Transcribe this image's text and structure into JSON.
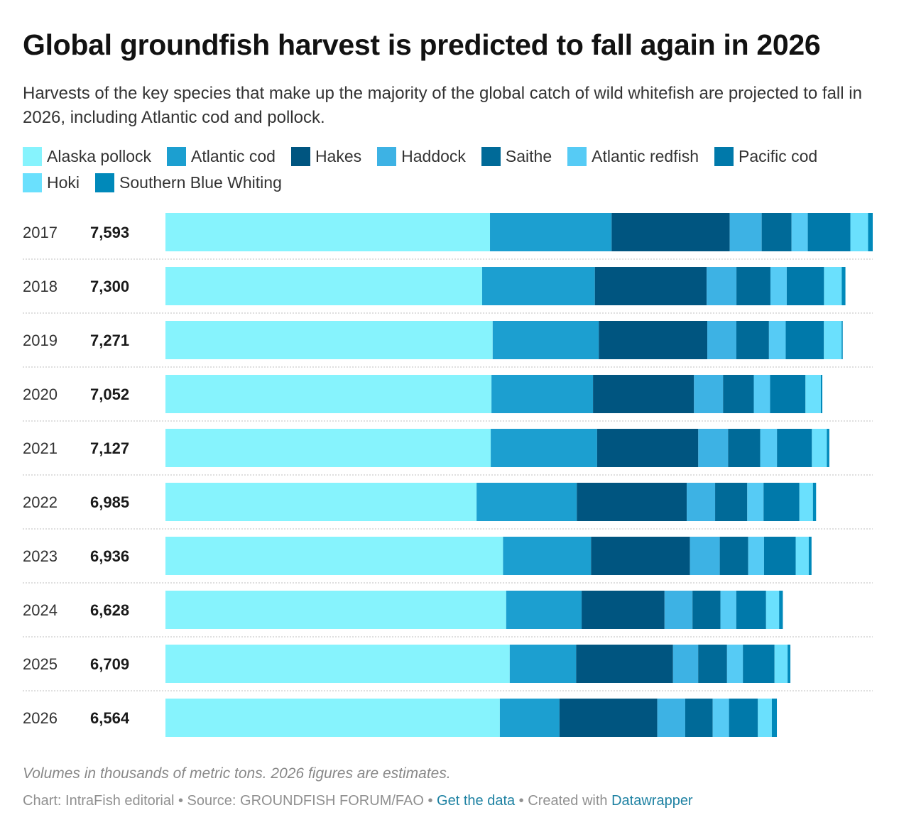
{
  "header": {
    "title": "Global groundfish harvest is predicted to fall again in 2026",
    "subtitle": "Harvests of the key species that make up the majority of the global catch of wild whitefish are projected to fall in 2026, including Atlantic cod and pollock."
  },
  "footer": {
    "note": "Volumes in thousands of metric tons. 2026 figures are estimates.",
    "credit": "Chart: IntraFish editorial",
    "sep1": " • ",
    "source": "Source: GROUNDFISH FORUM/FAO",
    "sep2": " • ",
    "get_data": "Get the data",
    "sep3": " • ",
    "created_with": "Created with ",
    "datawrapper": "Datawrapper"
  },
  "chart_data": {
    "type": "bar",
    "orientation": "horizontal",
    "stacked": true,
    "unit": "thousands of metric tons",
    "xlim": [
      0,
      7593
    ],
    "legend_position": "top",
    "categories": [
      "2017",
      "2018",
      "2019",
      "2020",
      "2021",
      "2022",
      "2023",
      "2024",
      "2025",
      "2026"
    ],
    "totals": [
      "7,593",
      "7,300",
      "7,271",
      "7,052",
      "7,127",
      "6,985",
      "6,936",
      "6,628",
      "6,709",
      "6,564"
    ],
    "series": [
      {
        "name": "Alaska pollock",
        "color": "#86f3fd",
        "values": [
          3484,
          3400,
          3513,
          3500,
          3492,
          3340,
          3624,
          3658,
          3696,
          3590
        ]
      },
      {
        "name": "Atlantic cod",
        "color": "#1c9fd0",
        "values": [
          1306,
          1210,
          1139,
          1090,
          1142,
          1076,
          945,
          810,
          713,
          640
        ]
      },
      {
        "name": "Hakes",
        "color": "#005580",
        "values": [
          1268,
          1200,
          1165,
          1084,
          1086,
          1180,
          1062,
          890,
          1040,
          1050
        ]
      },
      {
        "name": "Haddock",
        "color": "#3db2e4",
        "values": [
          343,
          320,
          312,
          312,
          320,
          305,
          320,
          300,
          270,
          300
        ]
      },
      {
        "name": "Saithe",
        "color": "#006a98",
        "values": [
          320,
          365,
          350,
          330,
          345,
          345,
          305,
          300,
          310,
          295
        ]
      },
      {
        "name": "Atlantic redfish",
        "color": "#56cbf5",
        "values": [
          175,
          175,
          180,
          175,
          180,
          175,
          170,
          170,
          170,
          175
        ]
      },
      {
        "name": "Pacific cod",
        "color": "#0079aa",
        "values": [
          457,
          400,
          410,
          380,
          375,
          385,
          340,
          320,
          340,
          310
        ]
      },
      {
        "name": "Hoki",
        "color": "#6ae0fd",
        "values": [
          190,
          190,
          190,
          165,
          160,
          145,
          140,
          140,
          140,
          150
        ]
      },
      {
        "name": "Southern Blue Whiting",
        "color": "#0089ba",
        "values": [
          50,
          40,
          12,
          16,
          27,
          34,
          30,
          40,
          30,
          54
        ]
      }
    ]
  }
}
